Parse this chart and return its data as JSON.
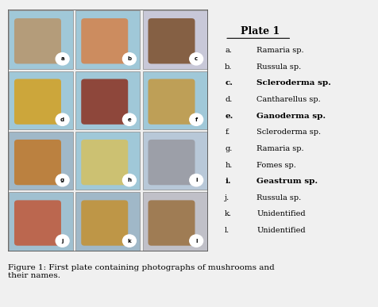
{
  "title": "Plate 1",
  "legend_items": [
    [
      "a.",
      "Ramaria sp."
    ],
    [
      "b.",
      "Russula sp."
    ],
    [
      "c.",
      "Scleroderma sp."
    ],
    [
      "d.",
      "Cantharellus sp."
    ],
    [
      "e.",
      "Ganoderma sp."
    ],
    [
      "f.",
      "Scleroderma sp."
    ],
    [
      "g.",
      "Ramaria sp."
    ],
    [
      "h.",
      "Fomes sp."
    ],
    [
      "i.",
      "Geastrum sp."
    ],
    [
      "j.",
      "Russula sp."
    ],
    [
      "k.",
      "Unidentified"
    ],
    [
      "l.",
      "Unidentified"
    ]
  ],
  "bold_items": [
    2,
    4,
    8
  ],
  "caption": "Figure 1: First plate containing photographs of mushrooms and\ntheir names.",
  "bg_color": "#f0f0f0",
  "panel_bg": "#ffffff",
  "legend_bg": "#ffffff",
  "cell_labels": [
    "a",
    "b",
    "c",
    "d",
    "e",
    "f",
    "g",
    "h",
    "i",
    "j",
    "k",
    "l"
  ],
  "photo_colors": [
    [
      "#b8956a",
      "#d4824a",
      "#7a4e2a"
    ],
    [
      "#d4a020",
      "#8b3020",
      "#c49840"
    ],
    [
      "#c07828",
      "#d4c060",
      "#9898a0"
    ],
    [
      "#c05838",
      "#c49030",
      "#9a7040"
    ]
  ],
  "bg_colors": [
    [
      "#a0c8d8",
      "#a0c8d8",
      "#c8c8d8"
    ],
    [
      "#a0c8d8",
      "#a0c8d8",
      "#a0c8d8"
    ],
    [
      "#a0b8c8",
      "#a0c8d8",
      "#b8c8d8"
    ],
    [
      "#a0c0d0",
      "#a0b8c8",
      "#c0c0c8"
    ]
  ]
}
